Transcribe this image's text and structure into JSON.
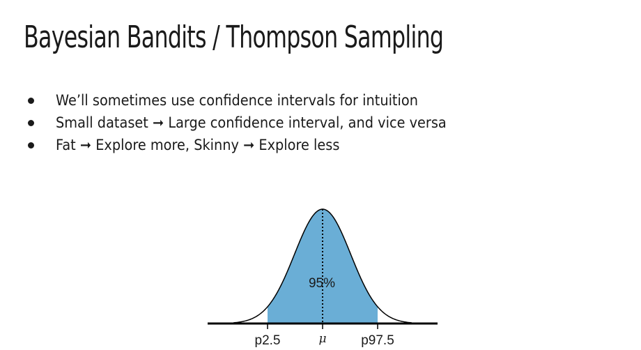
{
  "slide": {
    "title": "Bayesian Bandits / Thompson Sampling",
    "bullets": [
      "We’ll sometimes use confidence intervals for intuition",
      "Small dataset ➞ Large confidence interval, and vice versa",
      "Fat ➞ Explore more, Skinny ➞ Explore less"
    ]
  },
  "diagram": {
    "area_label": "95%",
    "left_label": "p2.5",
    "center_label": "μ",
    "right_label": "p97.5",
    "fill_color": "#6aaed6",
    "line_color": "#000000"
  }
}
